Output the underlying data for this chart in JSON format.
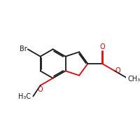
{
  "bg_color": "#ffffff",
  "bond_color": "#1a1a1a",
  "oxygen_color": "#ee0000",
  "figsize": [
    2.0,
    2.0
  ],
  "dpi": 100,
  "bond_lw": 1.3,
  "font_size": 7.0,
  "xlim": [
    0,
    10
  ],
  "ylim": [
    0,
    10
  ]
}
